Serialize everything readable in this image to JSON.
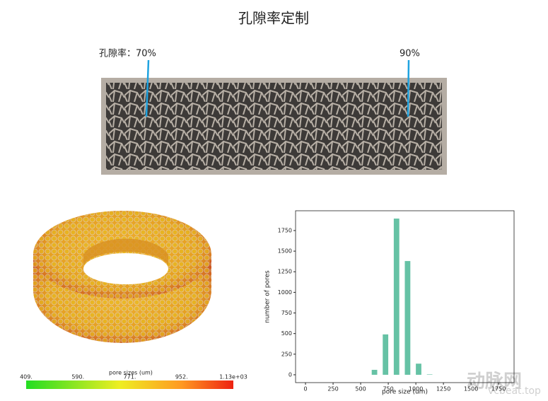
{
  "title": "孔隙率定制",
  "lattice": {
    "left_label": "孔隙率：70%",
    "right_label": "90%"
  },
  "colorbar": {
    "title": "pore sizes (um)",
    "labels": [
      "409.",
      "590.",
      "771.",
      "952.",
      "1.13e+03"
    ]
  },
  "watermark": {
    "brand": "动脉网",
    "site": "vcbeat.top"
  },
  "chart_data": {
    "type": "histogram",
    "xlabel": "pore size (um)",
    "ylabel": "number of pores",
    "bins": [
      575,
      675,
      775,
      875,
      975,
      1075,
      1175
    ],
    "values": [
      60,
      490,
      1895,
      1380,
      135,
      5
    ],
    "color": "#66c2a5",
    "xlim": [
      -90,
      1890
    ],
    "xticks": [
      0,
      250,
      500,
      750,
      1000,
      1250,
      1500,
      1750
    ],
    "ylim": [
      -95,
      1990
    ],
    "yticks": [
      0,
      250,
      500,
      750,
      1000,
      1250,
      1500,
      1750
    ]
  }
}
